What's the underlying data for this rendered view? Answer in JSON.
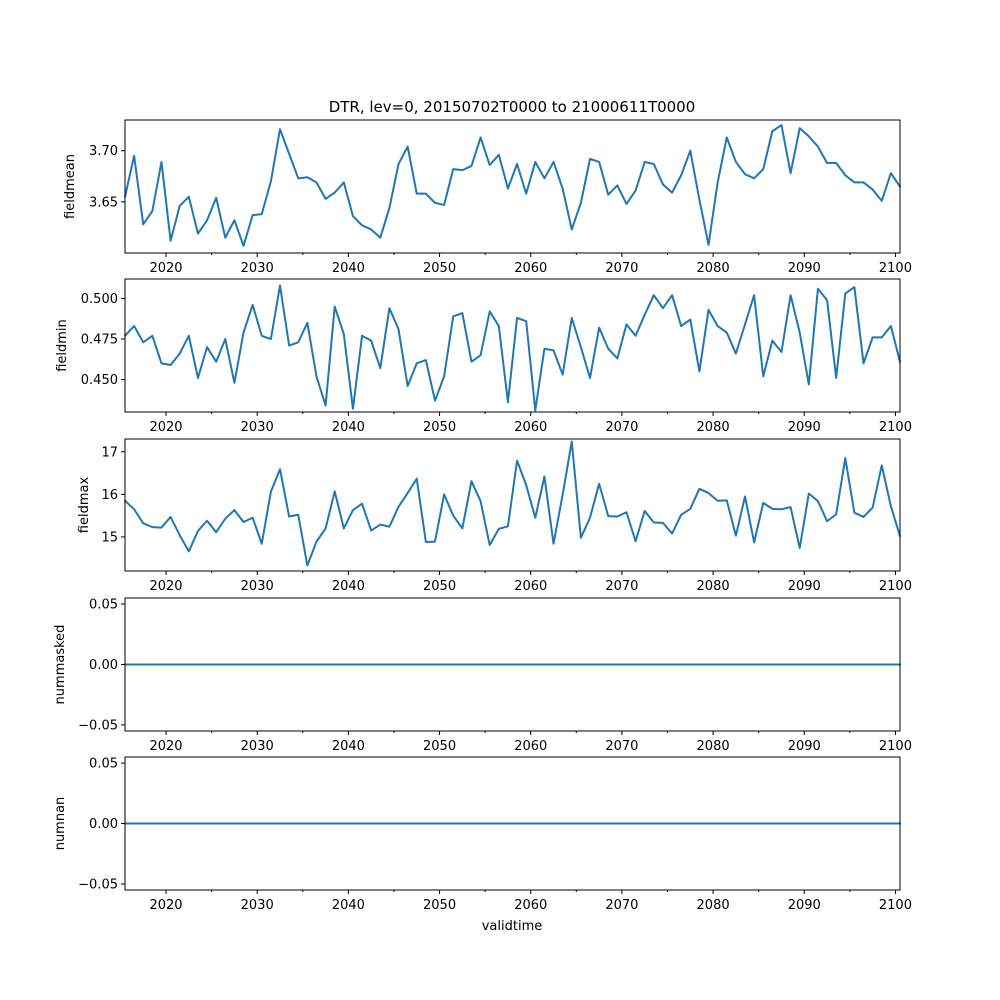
{
  "chart_data": {
    "title": "DTR, lev=0, 20150702T0000 to 21000611T0000",
    "xlabel": "validtime",
    "xlim": [
      2015.5,
      2100.5
    ],
    "x_start": 2015.5,
    "x_step": 1,
    "xticks": [
      2020,
      2030,
      2040,
      2050,
      2060,
      2070,
      2080,
      2090,
      2100
    ],
    "xtick_labels": [
      "2020",
      "2030",
      "2040",
      "2050",
      "2060",
      "2070",
      "2080",
      "2090",
      "2100"
    ],
    "line_color": "#1f77b4",
    "panels": [
      {
        "type": "line",
        "ylabel": "fieldmean",
        "ylim": [
          3.6,
          3.73
        ],
        "yticks": [
          3.65,
          3.7
        ],
        "ytick_labels": [
          "3.65",
          "3.70"
        ],
        "values": [
          3.655,
          3.695,
          3.628,
          3.641,
          3.689,
          3.612,
          3.646,
          3.655,
          3.619,
          3.632,
          3.654,
          3.615,
          3.632,
          3.607,
          3.637,
          3.638,
          3.67,
          3.721,
          3.697,
          3.673,
          3.674,
          3.669,
          3.653,
          3.659,
          3.669,
          3.636,
          3.627,
          3.623,
          3.615,
          3.644,
          3.687,
          3.704,
          3.658,
          3.658,
          3.649,
          3.647,
          3.682,
          3.681,
          3.685,
          3.713,
          3.686,
          3.696,
          3.663,
          3.687,
          3.658,
          3.689,
          3.673,
          3.689,
          3.663,
          3.623,
          3.649,
          3.692,
          3.689,
          3.657,
          3.666,
          3.648,
          3.661,
          3.689,
          3.687,
          3.667,
          3.659,
          3.676,
          3.7,
          3.652,
          3.608,
          3.669,
          3.713,
          3.689,
          3.677,
          3.673,
          3.682,
          3.719,
          3.725,
          3.678,
          3.722,
          3.714,
          3.704,
          3.688,
          3.688,
          3.676,
          3.669,
          3.669,
          3.662,
          3.651,
          3.678,
          3.665
        ]
      },
      {
        "type": "line",
        "ylabel": "fieldmin",
        "ylim": [
          0.43,
          0.512
        ],
        "yticks": [
          0.45,
          0.475,
          0.5
        ],
        "ytick_labels": [
          "0.450",
          "0.475",
          "0.500"
        ],
        "values": [
          0.477,
          0.483,
          0.473,
          0.477,
          0.46,
          0.459,
          0.466,
          0.477,
          0.451,
          0.47,
          0.461,
          0.475,
          0.448,
          0.479,
          0.496,
          0.477,
          0.475,
          0.508,
          0.471,
          0.473,
          0.485,
          0.452,
          0.434,
          0.495,
          0.478,
          0.432,
          0.477,
          0.474,
          0.457,
          0.494,
          0.481,
          0.446,
          0.46,
          0.462,
          0.437,
          0.452,
          0.489,
          0.491,
          0.461,
          0.465,
          0.492,
          0.483,
          0.436,
          0.488,
          0.486,
          0.431,
          0.469,
          0.468,
          0.453,
          0.488,
          0.47,
          0.451,
          0.482,
          0.469,
          0.463,
          0.484,
          0.477,
          0.49,
          0.502,
          0.494,
          0.502,
          0.483,
          0.487,
          0.455,
          0.493,
          0.483,
          0.479,
          0.466,
          0.484,
          0.502,
          0.452,
          0.474,
          0.467,
          0.502,
          0.479,
          0.447,
          0.506,
          0.499,
          0.451,
          0.503,
          0.507,
          0.46,
          0.476,
          0.476,
          0.483,
          0.461
        ]
      },
      {
        "type": "line",
        "ylabel": "fieldmax",
        "ylim": [
          14.2,
          17.3
        ],
        "yticks": [
          15,
          16,
          17
        ],
        "ytick_labels": [
          "15",
          "16",
          "17"
        ],
        "values": [
          15.85,
          15.65,
          15.32,
          15.23,
          15.22,
          15.47,
          15.04,
          14.66,
          15.14,
          15.38,
          15.11,
          15.43,
          15.63,
          15.35,
          15.45,
          14.84,
          16.06,
          16.59,
          15.48,
          15.52,
          14.33,
          14.89,
          15.2,
          16.07,
          15.2,
          15.63,
          15.78,
          15.15,
          15.29,
          15.24,
          15.71,
          16.03,
          16.37,
          14.88,
          14.89,
          16.0,
          15.5,
          15.2,
          16.31,
          15.84,
          14.81,
          15.19,
          15.25,
          16.79,
          16.22,
          15.45,
          16.42,
          14.84,
          15.99,
          17.24,
          14.98,
          15.45,
          16.25,
          15.49,
          15.48,
          15.58,
          14.9,
          15.61,
          15.34,
          15.33,
          15.08,
          15.52,
          15.66,
          16.13,
          16.03,
          15.85,
          15.86,
          15.03,
          15.95,
          14.87,
          15.8,
          15.66,
          15.65,
          15.7,
          14.74,
          16.02,
          15.84,
          15.37,
          15.53,
          16.85,
          15.57,
          15.47,
          15.69,
          16.68,
          15.72,
          15.02
        ]
      },
      {
        "type": "line",
        "ylabel": "nummasked",
        "ylim": [
          -0.055,
          0.055
        ],
        "yticks": [
          -0.05,
          0.0,
          0.05
        ],
        "ytick_labels": [
          "−0.05",
          "0.00",
          "0.05"
        ],
        "values": [
          0,
          0,
          0,
          0,
          0,
          0,
          0,
          0,
          0,
          0,
          0,
          0,
          0,
          0,
          0,
          0,
          0,
          0,
          0,
          0,
          0,
          0,
          0,
          0,
          0,
          0,
          0,
          0,
          0,
          0,
          0,
          0,
          0,
          0,
          0,
          0,
          0,
          0,
          0,
          0,
          0,
          0,
          0,
          0,
          0,
          0,
          0,
          0,
          0,
          0,
          0,
          0,
          0,
          0,
          0,
          0,
          0,
          0,
          0,
          0,
          0,
          0,
          0,
          0,
          0,
          0,
          0,
          0,
          0,
          0,
          0,
          0,
          0,
          0,
          0,
          0,
          0,
          0,
          0,
          0,
          0,
          0,
          0,
          0,
          0,
          0
        ]
      },
      {
        "type": "line",
        "ylabel": "numnan",
        "ylim": [
          -0.055,
          0.055
        ],
        "yticks": [
          -0.05,
          0.0,
          0.05
        ],
        "ytick_labels": [
          "−0.05",
          "0.00",
          "0.05"
        ],
        "values": [
          0,
          0,
          0,
          0,
          0,
          0,
          0,
          0,
          0,
          0,
          0,
          0,
          0,
          0,
          0,
          0,
          0,
          0,
          0,
          0,
          0,
          0,
          0,
          0,
          0,
          0,
          0,
          0,
          0,
          0,
          0,
          0,
          0,
          0,
          0,
          0,
          0,
          0,
          0,
          0,
          0,
          0,
          0,
          0,
          0,
          0,
          0,
          0,
          0,
          0,
          0,
          0,
          0,
          0,
          0,
          0,
          0,
          0,
          0,
          0,
          0,
          0,
          0,
          0,
          0,
          0,
          0,
          0,
          0,
          0,
          0,
          0,
          0,
          0,
          0,
          0,
          0,
          0,
          0,
          0,
          0,
          0,
          0,
          0,
          0,
          0
        ]
      }
    ]
  }
}
